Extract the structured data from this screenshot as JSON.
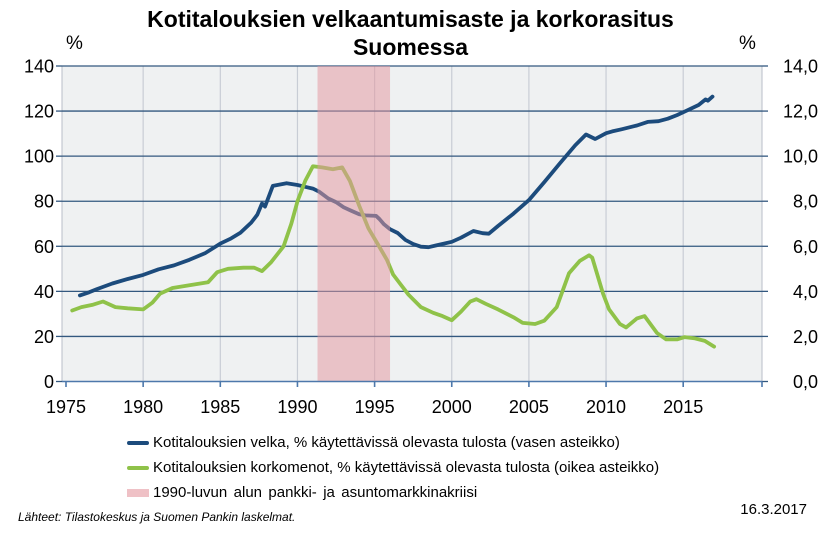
{
  "header": {
    "title_line1": "Kotitalouksien velkaantumisaste ja korkorasitus",
    "title_line2": "Suomessa"
  },
  "footer": {
    "source": "Lähteet: Tilastokeskus ja Suomen Pankin laskelmat.",
    "date": "16.3.2017"
  },
  "chart_data": {
    "type": "line",
    "title": "Kotitalouksien velkaantumisaste ja korkorasitus Suomessa",
    "x_axis": {
      "min": 1975,
      "max": 2020.2,
      "tick_years": [
        1975,
        1980,
        1985,
        1990,
        1995,
        2000,
        2005,
        2010,
        2015
      ],
      "tick_labels": [
        "1975",
        "1980",
        "1985",
        "1990",
        "1995",
        "2000",
        "2005",
        "2010",
        "2015"
      ]
    },
    "y_axis_left": {
      "unit": "%",
      "min": 0,
      "max": 140,
      "tick_values": [
        0,
        20,
        40,
        60,
        80,
        100,
        120,
        140
      ],
      "tick_labels": [
        "0",
        "20",
        "40",
        "60",
        "80",
        "100",
        "120",
        "140"
      ]
    },
    "y_axis_right": {
      "unit": "%",
      "min": 0,
      "max": 14,
      "tick_values": [
        0,
        2,
        4,
        6,
        8,
        10,
        12,
        14
      ],
      "tick_labels": [
        "0,0",
        "2,0",
        "4,0",
        "6,0",
        "8,0",
        "10,0",
        "12,0",
        "14,0"
      ]
    },
    "band": {
      "label": "1990-luvun alun pankki- ja asuntomarkkinakriisi",
      "x_from": 1991.3,
      "x_to": 1996.0,
      "color": "#e597a0",
      "opacity": 0.52
    },
    "series": [
      {
        "name": "Kotitalouksien velka, % käytettävissä olevasta tulosta (vasen asteikko)",
        "axis": "left",
        "color": "#1c4b7c",
        "points": [
          [
            1975.9,
            38.2
          ],
          [
            1976.5,
            39.6
          ],
          [
            1977,
            41
          ],
          [
            1978,
            43.5
          ],
          [
            1979,
            45.5
          ],
          [
            1980,
            47.3
          ],
          [
            1981,
            49.8
          ],
          [
            1982,
            51.5
          ],
          [
            1983,
            54
          ],
          [
            1984,
            56.9
          ],
          [
            1985,
            61.2
          ],
          [
            1985.7,
            63.5
          ],
          [
            1986.3,
            66
          ],
          [
            1987,
            70.5
          ],
          [
            1987.4,
            74
          ],
          [
            1987.7,
            79
          ],
          [
            1987.9,
            77.6
          ],
          [
            1988.4,
            86.8
          ],
          [
            1989,
            87.6
          ],
          [
            1989.3,
            88
          ],
          [
            1990,
            87.2
          ],
          [
            1990.6,
            86.2
          ],
          [
            1991,
            85.6
          ],
          [
            1991.4,
            84.2
          ],
          [
            1992,
            81.2
          ],
          [
            1992.5,
            79.6
          ],
          [
            1993,
            77.3
          ],
          [
            1993.5,
            75.7
          ],
          [
            1994,
            74.2
          ],
          [
            1994.4,
            73.7
          ],
          [
            1995.1,
            73.5
          ],
          [
            1995.3,
            72.2
          ],
          [
            1995.6,
            69.8
          ],
          [
            1996,
            67.6
          ],
          [
            1996.5,
            65.9
          ],
          [
            1997,
            62.8
          ],
          [
            1997.5,
            61
          ],
          [
            1998,
            59.8
          ],
          [
            1998.5,
            59.6
          ],
          [
            1999,
            60.4
          ],
          [
            2000,
            62
          ],
          [
            2000.6,
            63.8
          ],
          [
            2001.4,
            66.8
          ],
          [
            2002,
            65.8
          ],
          [
            2002.4,
            65.6
          ],
          [
            2003,
            69
          ],
          [
            2004,
            74.5
          ],
          [
            2005,
            80.5
          ],
          [
            2006,
            88.5
          ],
          [
            2007,
            96.8
          ],
          [
            2008,
            104.8
          ],
          [
            2008.7,
            109.6
          ],
          [
            2009.3,
            107.6
          ],
          [
            2010,
            110.2
          ],
          [
            2010.4,
            111
          ],
          [
            2011,
            111.9
          ],
          [
            2012,
            113.6
          ],
          [
            2012.7,
            115.2
          ],
          [
            2013.4,
            115.5
          ],
          [
            2014,
            116.6
          ],
          [
            2014.6,
            118.2
          ],
          [
            2015.2,
            120.1
          ],
          [
            2016,
            122.7
          ],
          [
            2016.45,
            125.2
          ],
          [
            2016.6,
            124.6
          ],
          [
            2016.9,
            126.4
          ]
        ]
      },
      {
        "name": "Kotitalouksien korkomenot, % käytettävissä olevasta tulosta (oikea asteikko)",
        "axis": "right",
        "color": "#8fc249",
        "points": [
          [
            1975.4,
            3.15
          ],
          [
            1976,
            3.3
          ],
          [
            1976.7,
            3.4
          ],
          [
            1977.4,
            3.55
          ],
          [
            1978.2,
            3.3
          ],
          [
            1979,
            3.25
          ],
          [
            1980,
            3.2
          ],
          [
            1980.6,
            3.5
          ],
          [
            1981.1,
            3.9
          ],
          [
            1981.9,
            4.15
          ],
          [
            1983,
            4.27
          ],
          [
            1984.2,
            4.4
          ],
          [
            1984.8,
            4.85
          ],
          [
            1985.5,
            5.0
          ],
          [
            1986.5,
            5.05
          ],
          [
            1987.2,
            5.05
          ],
          [
            1987.7,
            4.9
          ],
          [
            1988.3,
            5.3
          ],
          [
            1989.1,
            6.0
          ],
          [
            1989.6,
            7.0
          ],
          [
            1990,
            8.0
          ],
          [
            1990.5,
            8.9
          ],
          [
            1991,
            9.55
          ],
          [
            1991.6,
            9.5
          ],
          [
            1992.3,
            9.42
          ],
          [
            1992.9,
            9.5
          ],
          [
            1993.4,
            8.9
          ],
          [
            1994,
            7.8
          ],
          [
            1994.6,
            6.8
          ],
          [
            1995.2,
            6.1
          ],
          [
            1995.8,
            5.4
          ],
          [
            1996.2,
            4.75
          ],
          [
            1996.7,
            4.3
          ],
          [
            1997.2,
            3.85
          ],
          [
            1998,
            3.3
          ],
          [
            1998.8,
            3.05
          ],
          [
            1999.4,
            2.9
          ],
          [
            2000,
            2.72
          ],
          [
            2000.6,
            3.1
          ],
          [
            2001.2,
            3.55
          ],
          [
            2001.6,
            3.65
          ],
          [
            2002.2,
            3.45
          ],
          [
            2003,
            3.2
          ],
          [
            2004,
            2.85
          ],
          [
            2004.6,
            2.6
          ],
          [
            2005.4,
            2.55
          ],
          [
            2006,
            2.7
          ],
          [
            2006.8,
            3.3
          ],
          [
            2007.6,
            4.8
          ],
          [
            2008.3,
            5.35
          ],
          [
            2008.9,
            5.6
          ],
          [
            2009.1,
            5.5
          ],
          [
            2009.8,
            3.9
          ],
          [
            2010.2,
            3.2
          ],
          [
            2010.9,
            2.55
          ],
          [
            2011.3,
            2.4
          ],
          [
            2012,
            2.8
          ],
          [
            2012.5,
            2.9
          ],
          [
            2013.3,
            2.15
          ],
          [
            2013.9,
            1.87
          ],
          [
            2014.6,
            1.87
          ],
          [
            2015.1,
            1.97
          ],
          [
            2015.7,
            1.92
          ],
          [
            2016.4,
            1.8
          ],
          [
            2017,
            1.55
          ]
        ]
      }
    ],
    "colors": {
      "plot_bg": "#eff1f2",
      "h_grid": "#33587f",
      "v_grid": "#c8cdd5",
      "axis_line": "#4d78ab",
      "plot_border": "#b9bec8"
    },
    "legend_position": "bottom",
    "grid": true
  }
}
